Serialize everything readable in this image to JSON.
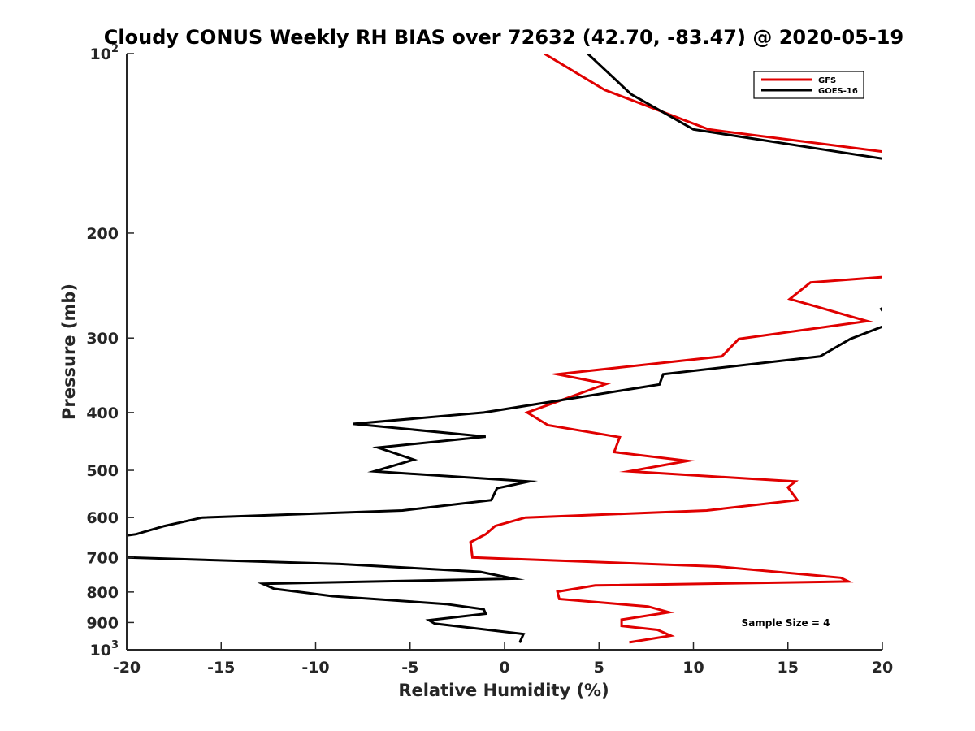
{
  "chart_data": {
    "type": "line",
    "title": "Cloudy CONUS Weekly RH BIAS over 72632 (42.70, -83.47) @ 2020-05-19",
    "xlabel": "Relative Humidity (%)",
    "ylabel": "Pressure (mb)",
    "xlim": [
      -20,
      20
    ],
    "ylim": [
      100,
      1000
    ],
    "y_scale": "log",
    "y_direction": "reversed",
    "grid": false,
    "legend_position": "top-right",
    "x_ticks": [
      "-20",
      "-15",
      "-10",
      "-5",
      "0",
      "5",
      "10",
      "15",
      "20"
    ],
    "y_ticks": [
      {
        "base": "10",
        "exp": "2",
        "value": 100
      },
      {
        "base": "200",
        "exp": "",
        "value": 200
      },
      {
        "base": "300",
        "exp": "",
        "value": 300
      },
      {
        "base": "400",
        "exp": "",
        "value": 400
      },
      {
        "base": "500",
        "exp": "",
        "value": 500
      },
      {
        "base": "600",
        "exp": "",
        "value": 600
      },
      {
        "base": "700",
        "exp": "",
        "value": 700
      },
      {
        "base": "800",
        "exp": "",
        "value": 800
      },
      {
        "base": "900",
        "exp": "",
        "value": 900
      },
      {
        "base": "10",
        "exp": "3",
        "value": 1000
      }
    ],
    "annotation": "Sample Size = 4",
    "series": [
      {
        "name": "GFS",
        "color": "#e00000",
        "points": [
          [
            2.1,
            100
          ],
          [
            5.3,
            115
          ],
          [
            10.8,
            134
          ],
          [
            20,
            146
          ],
          null,
          [
            20,
            237
          ],
          [
            16.2,
            242
          ],
          [
            15.1,
            258
          ],
          [
            19.2,
            281
          ],
          [
            12.4,
            301
          ],
          [
            11.5,
            322
          ],
          [
            2.8,
            345
          ],
          [
            5.4,
            358
          ],
          [
            1.2,
            400
          ],
          [
            2.3,
            420
          ],
          [
            6.1,
            440
          ],
          [
            5.8,
            466
          ],
          [
            9.7,
            482
          ],
          [
            6.6,
            502
          ],
          [
            15.4,
            522
          ],
          [
            15.0,
            534
          ],
          [
            15.5,
            561
          ],
          [
            10.7,
            584
          ],
          [
            1.1,
            600
          ],
          [
            -0.5,
            620
          ],
          [
            -1.0,
            640
          ],
          [
            -1.8,
            660
          ],
          [
            -1.7,
            700
          ],
          [
            11.3,
            725
          ],
          [
            17.8,
            757
          ],
          [
            18.2,
            768
          ],
          [
            4.8,
            780
          ],
          [
            2.8,
            799
          ],
          [
            2.9,
            822
          ],
          [
            7.6,
            846
          ],
          [
            8.7,
            865
          ],
          [
            6.2,
            890
          ],
          [
            6.2,
            912
          ],
          [
            8.1,
            926
          ],
          [
            8.8,
            947
          ],
          [
            6.6,
            972
          ]
        ]
      },
      {
        "name": "GOES-16",
        "color": "#000000",
        "points": [
          [
            4.4,
            100
          ],
          [
            6.7,
            117
          ],
          [
            10,
            134
          ],
          [
            20,
            150
          ],
          null,
          [
            19.9,
            267
          ],
          [
            20,
            270
          ],
          null,
          [
            20,
            287
          ],
          [
            18.3,
            301
          ],
          [
            16.7,
            322
          ],
          [
            8.4,
            345
          ],
          [
            8.2,
            359
          ],
          [
            -1.1,
            400
          ],
          [
            -8.0,
            418
          ],
          [
            -1.0,
            439
          ],
          [
            -6.7,
            458
          ],
          [
            -4.8,
            480
          ],
          [
            -6.9,
            502
          ],
          [
            1.3,
            522
          ],
          [
            -0.4,
            536
          ],
          [
            -0.7,
            561
          ],
          [
            -5.4,
            584
          ],
          [
            -16.0,
            600
          ],
          [
            -18.0,
            620
          ],
          [
            -19.5,
            640
          ],
          [
            -20,
            643
          ],
          null,
          [
            -20,
            700
          ],
          [
            -8.7,
            718
          ],
          [
            -1.3,
            740
          ],
          [
            0.5,
            760
          ],
          [
            -12.8,
            775
          ],
          [
            -12.2,
            790
          ],
          [
            -9.1,
            813
          ],
          [
            -3.1,
            838
          ],
          [
            -1.1,
            855
          ],
          [
            -1.0,
            870
          ],
          [
            -4.0,
            892
          ],
          [
            -3.7,
            904
          ],
          [
            1.0,
            941
          ],
          [
            0.8,
            973
          ]
        ]
      }
    ]
  }
}
